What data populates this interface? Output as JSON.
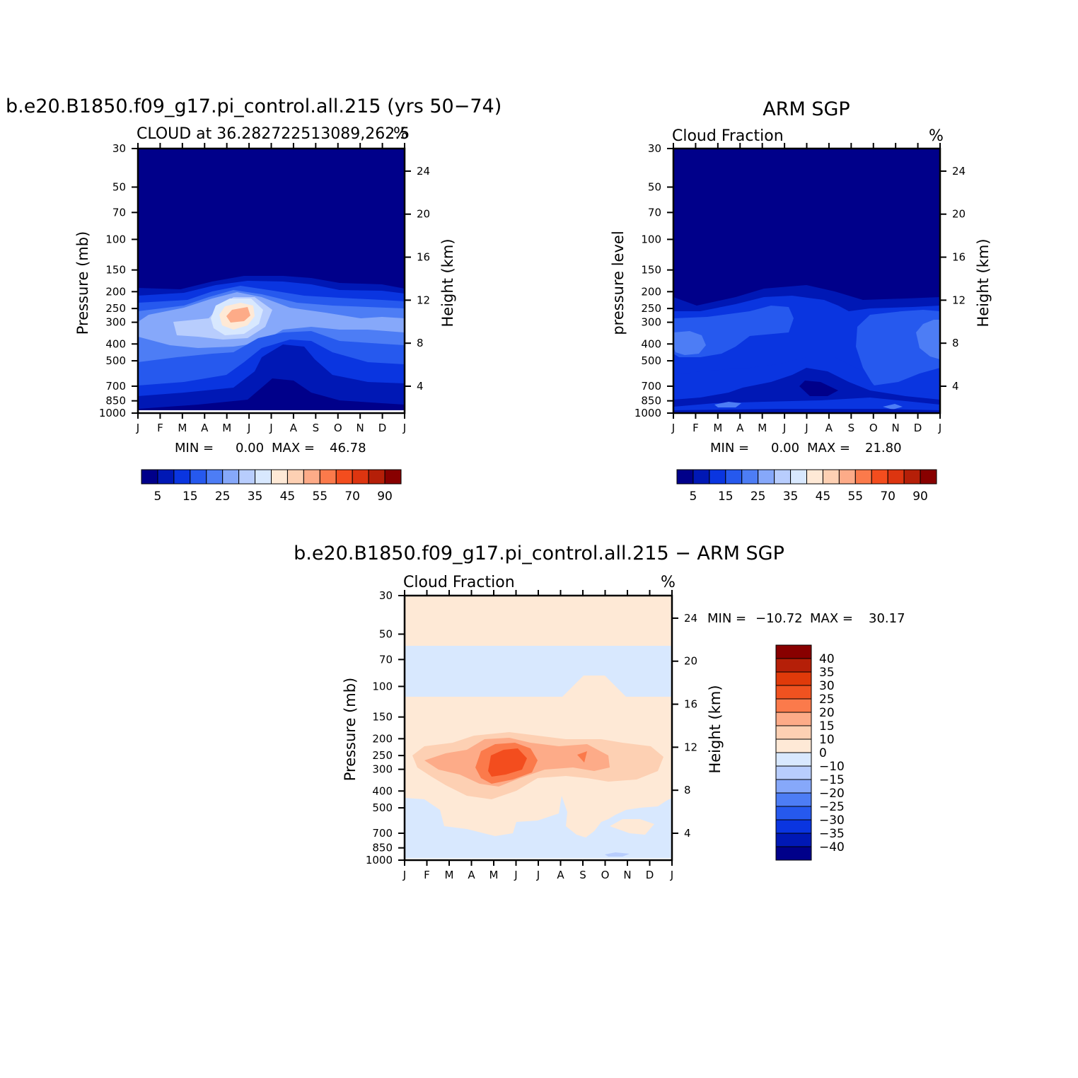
{
  "chart_data": [
    {
      "type": "heatmap",
      "id": "model",
      "title": "b.e20.B1850.f09_g17.pi_control.all.215 (yrs 50−74)",
      "subtitle_left": "CLOUD at 36.282722513089,262.5",
      "subtitle_right": "%",
      "xlabel": "",
      "ylabel": "Pressure (mb)",
      "ylabel_right": "Height (km)",
      "x_ticks": [
        "J",
        "F",
        "M",
        "A",
        "M",
        "J",
        "J",
        "A",
        "S",
        "O",
        "N",
        "D",
        "J"
      ],
      "y_ticks": [
        "30",
        "50",
        "70",
        "100",
        "150",
        "200",
        "250",
        "300",
        "400",
        "500",
        "700",
        "850",
        "1000"
      ],
      "y_ticks_right": [
        "24",
        "20",
        "16",
        "12",
        "8",
        "4"
      ],
      "min_label": "MIN =",
      "min_value": "0.00",
      "max_label": "MAX =",
      "max_value": "46.78",
      "min": 0.0,
      "max": 46.78,
      "colorbar_labels": [
        "5",
        "15",
        "25",
        "35",
        "45",
        "55",
        "70",
        "90"
      ],
      "colorbar_orientation": "horizontal"
    },
    {
      "type": "heatmap",
      "id": "obs",
      "title": "ARM SGP",
      "subtitle_left": "Cloud Fraction",
      "subtitle_right": "%",
      "xlabel": "",
      "ylabel": "pressure level",
      "ylabel_right": "Height (km)",
      "x_ticks": [
        "J",
        "F",
        "M",
        "A",
        "M",
        "J",
        "J",
        "A",
        "S",
        "O",
        "N",
        "D",
        "J"
      ],
      "y_ticks": [
        "30",
        "50",
        "70",
        "100",
        "150",
        "200",
        "250",
        "300",
        "400",
        "500",
        "700",
        "850",
        "1000"
      ],
      "y_ticks_right": [
        "24",
        "20",
        "16",
        "12",
        "8",
        "4"
      ],
      "min_label": "MIN =",
      "min_value": "0.00",
      "max_label": "MAX =",
      "max_value": "21.80",
      "min": 0.0,
      "max": 21.8,
      "colorbar_labels": [
        "5",
        "15",
        "25",
        "35",
        "45",
        "55",
        "70",
        "90"
      ],
      "colorbar_orientation": "horizontal"
    },
    {
      "type": "heatmap",
      "id": "diff",
      "title": "b.e20.B1850.f09_g17.pi_control.all.215 − ARM SGP",
      "subtitle_left": "Cloud Fraction",
      "subtitle_right": "%",
      "xlabel": "",
      "ylabel": "Pressure (mb)",
      "ylabel_right": "Height (km)",
      "x_ticks": [
        "J",
        "F",
        "M",
        "A",
        "M",
        "J",
        "J",
        "A",
        "S",
        "O",
        "N",
        "D",
        "J"
      ],
      "y_ticks": [
        "30",
        "50",
        "70",
        "100",
        "150",
        "200",
        "250",
        "300",
        "400",
        "500",
        "700",
        "850",
        "1000"
      ],
      "y_ticks_right": [
        "24",
        "20",
        "16",
        "12",
        "8",
        "4"
      ],
      "min_label": "MIN =",
      "min_value": "−10.72",
      "max_label": "MAX =",
      "max_value": "30.17",
      "min": -10.72,
      "max": 30.17,
      "colorbar_labels": [
        "40",
        "35",
        "30",
        "25",
        "20",
        "15",
        "10",
        "0",
        "−10",
        "−15",
        "−20",
        "−25",
        "−30",
        "−35",
        "−40"
      ],
      "colorbar_orientation": "vertical"
    }
  ],
  "colors": {
    "seq": [
      "#00008a",
      "#0018b5",
      "#0a35e0",
      "#2659ee",
      "#4d7df5",
      "#86a8fa",
      "#b8cdfd",
      "#d8e8fe",
      "#fee9d6",
      "#fdd0b3",
      "#fdab88",
      "#fb7a4b",
      "#f34d1e",
      "#dd3510",
      "#b51f08",
      "#880000"
    ],
    "diff": [
      "#880000",
      "#b51f08",
      "#e03a0a",
      "#f05220",
      "#fb7a4b",
      "#fdab88",
      "#fdd0b3",
      "#fee9d6",
      "#d8e8fe",
      "#b8cdfd",
      "#86a8fa",
      "#4d7df5",
      "#2659ee",
      "#0a35e0",
      "#0018b5",
      "#00008a"
    ]
  }
}
